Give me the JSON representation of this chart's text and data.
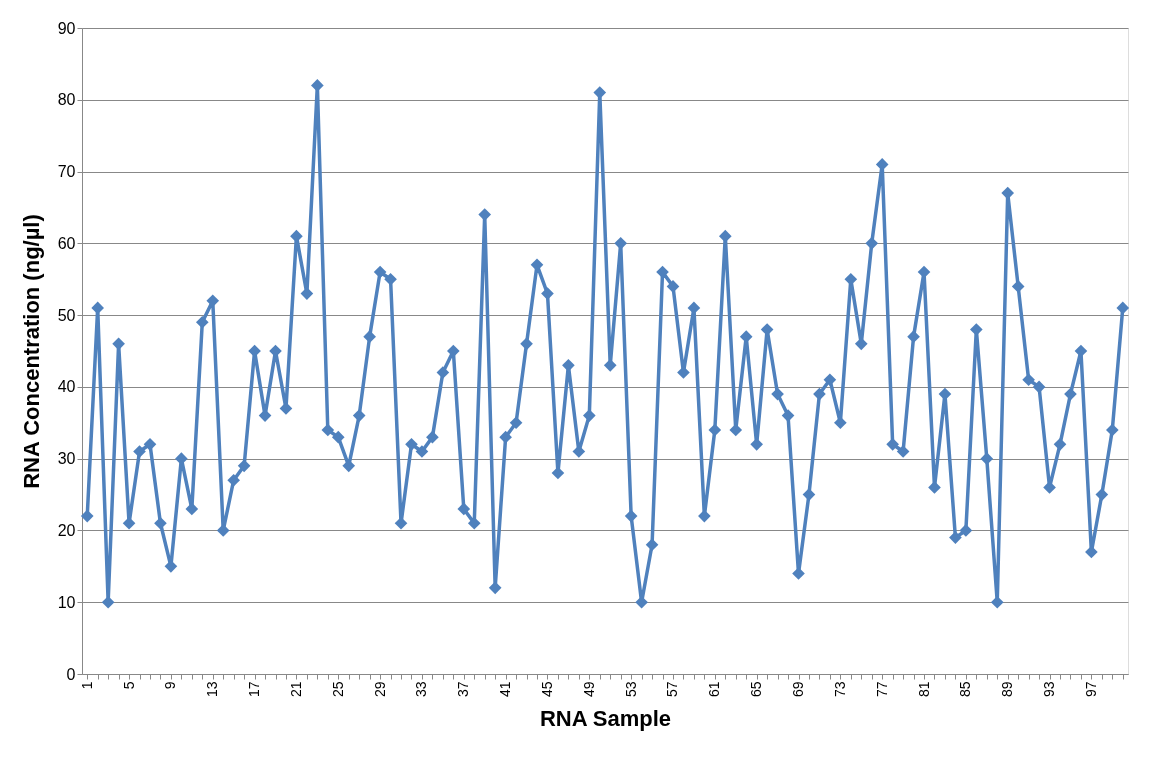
{
  "chart_data": {
    "type": "line",
    "xlabel": "RNA  Sample",
    "ylabel": "RNA Concentration (ng/µl)",
    "categories": [
      "1",
      null,
      null,
      null,
      "5",
      null,
      null,
      null,
      "9",
      null,
      null,
      null,
      "13",
      null,
      null,
      null,
      "17",
      null,
      null,
      null,
      "21",
      null,
      null,
      null,
      "25",
      null,
      null,
      null,
      "29",
      null,
      null,
      null,
      "33",
      null,
      null,
      null,
      "37",
      null,
      null,
      null,
      "41",
      null,
      null,
      null,
      "45",
      null,
      null,
      null,
      "49",
      null,
      null,
      null,
      "53",
      null,
      null,
      null,
      "57",
      null,
      null,
      null,
      "61",
      null,
      null,
      null,
      "65",
      null,
      null,
      null,
      "69",
      null,
      null,
      null,
      "73",
      null,
      null,
      null,
      "77",
      null,
      null,
      null,
      "81",
      null,
      null,
      null,
      "85",
      null,
      null,
      null,
      "89",
      null,
      null,
      null,
      "93",
      null,
      null,
      null,
      "97",
      null,
      null,
      null
    ],
    "series": [
      {
        "color": "#4f81bd",
        "values": [
          22,
          51,
          10,
          46,
          21,
          31,
          32,
          21,
          15,
          30,
          23,
          49,
          52,
          20,
          27,
          29,
          45,
          36,
          45,
          37,
          61,
          53,
          82,
          34,
          33,
          29,
          36,
          47,
          56,
          55,
          21,
          32,
          31,
          33,
          42,
          45,
          23,
          21,
          64,
          12,
          33,
          35,
          46,
          57,
          53,
          28,
          43,
          31,
          36,
          81,
          43,
          60,
          22,
          10,
          18,
          56,
          54,
          42,
          51,
          22,
          34,
          61,
          34,
          47,
          32,
          48,
          39,
          36,
          14,
          25,
          39,
          41,
          35,
          55,
          46,
          60,
          71,
          32,
          31,
          47,
          56,
          26,
          39,
          19,
          20,
          48,
          30,
          10,
          67,
          54,
          41,
          40,
          26,
          32,
          39,
          45,
          17,
          25,
          34,
          51
        ]
      }
    ],
    "ylim": [
      0,
      90
    ],
    "yticks": [
      0,
      10,
      20,
      30,
      40,
      50,
      60,
      70,
      80,
      90
    ],
    "grid": "y",
    "marker": "diamond",
    "line_style": "solid"
  }
}
